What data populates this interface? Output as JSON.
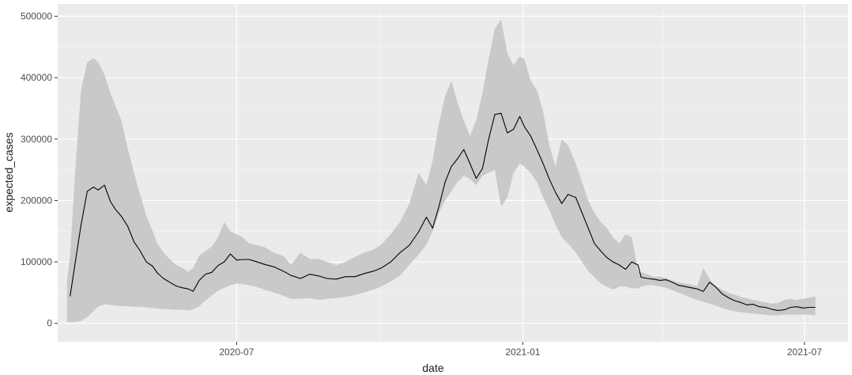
{
  "chart_data": {
    "type": "line",
    "title": "",
    "xlabel": "date",
    "ylabel": "expected_cases",
    "x_range": [
      "2020-03-08",
      "2021-07-29"
    ],
    "ylim": [
      -30000,
      520000
    ],
    "x_ticks": [
      {
        "date": "2020-07-01",
        "label": "2020-07"
      },
      {
        "date": "2021-01-01",
        "label": "2021-01"
      },
      {
        "date": "2021-07-01",
        "label": "2021-07"
      }
    ],
    "y_ticks": [
      {
        "value": 0,
        "label": "0"
      },
      {
        "value": 100000,
        "label": "100000"
      },
      {
        "value": 200000,
        "label": "200000"
      },
      {
        "value": 300000,
        "label": "300000"
      },
      {
        "value": 400000,
        "label": "400000"
      },
      {
        "value": 500000,
        "label": "500000"
      }
    ],
    "grid": true,
    "legend": "none",
    "colors": {
      "panel": "#ebebeb",
      "grid_major": "#ffffff",
      "ribbon": "#c9c9c9",
      "line": "#000000"
    },
    "series": [
      {
        "type": "line",
        "x": [
          "2020-03-16",
          "2020-03-19",
          "2020-03-23",
          "2020-03-27",
          "2020-03-31",
          "2020-04-03",
          "2020-04-07",
          "2020-04-11",
          "2020-04-14",
          "2020-04-18",
          "2020-04-22",
          "2020-04-26",
          "2020-04-30",
          "2020-05-04",
          "2020-05-08",
          "2020-05-11",
          "2020-05-15",
          "2020-05-19",
          "2020-05-23",
          "2020-05-27",
          "2020-05-31",
          "2020-06-03",
          "2020-06-07",
          "2020-06-11",
          "2020-06-15",
          "2020-06-19",
          "2020-06-23",
          "2020-06-27",
          "2020-07-01",
          "2020-07-05",
          "2020-07-09",
          "2020-07-13",
          "2020-07-19",
          "2020-07-25",
          "2020-07-31",
          "2020-08-05",
          "2020-08-11",
          "2020-08-17",
          "2020-08-23",
          "2020-08-28",
          "2020-09-03",
          "2020-09-09",
          "2020-09-15",
          "2020-09-21",
          "2020-09-27",
          "2020-10-02",
          "2020-10-08",
          "2020-10-14",
          "2020-10-20",
          "2020-10-26",
          "2020-10-31",
          "2020-11-04",
          "2020-11-08",
          "2020-11-12",
          "2020-11-16",
          "2020-11-20",
          "2020-11-24",
          "2020-11-28",
          "2020-12-02",
          "2020-12-06",
          "2020-12-10",
          "2020-12-14",
          "2020-12-18",
          "2020-12-22",
          "2020-12-26",
          "2020-12-30",
          "2021-01-02",
          "2021-01-06",
          "2021-01-10",
          "2021-01-14",
          "2021-01-18",
          "2021-01-22",
          "2021-01-26",
          "2021-01-30",
          "2021-02-04",
          "2021-02-08",
          "2021-02-12",
          "2021-02-16",
          "2021-02-20",
          "2021-02-24",
          "2021-02-28",
          "2021-03-04",
          "2021-03-08",
          "2021-03-12",
          "2021-03-16",
          "2021-03-18",
          "2021-03-22",
          "2021-03-26",
          "2021-03-30",
          "2021-04-03",
          "2021-04-07",
          "2021-04-11",
          "2021-04-15",
          "2021-04-19",
          "2021-04-23",
          "2021-04-27",
          "2021-05-01",
          "2021-05-05",
          "2021-05-09",
          "2021-05-13",
          "2021-05-17",
          "2021-05-21",
          "2021-05-25",
          "2021-05-29",
          "2021-06-02",
          "2021-06-06",
          "2021-06-10",
          "2021-06-14",
          "2021-06-18",
          "2021-06-22",
          "2021-06-26",
          "2021-06-30",
          "2021-07-04",
          "2021-07-08"
        ],
        "values": [
          44000,
          95000,
          160000,
          215000,
          222000,
          217000,
          225000,
          198000,
          186000,
          174000,
          158000,
          133000,
          118000,
          100000,
          93000,
          82000,
          73000,
          67000,
          61000,
          58000,
          56000,
          52000,
          70000,
          80000,
          83000,
          94000,
          100000,
          113000,
          103000,
          104000,
          104000,
          101000,
          96000,
          92000,
          85000,
          78000,
          73000,
          80000,
          77000,
          73000,
          72000,
          76000,
          76000,
          81000,
          85000,
          90000,
          100000,
          115000,
          127000,
          149000,
          173000,
          155000,
          190000,
          230000,
          255000,
          268000,
          283000,
          260000,
          236000,
          252000,
          300000,
          340000,
          342000,
          310000,
          316000,
          337000,
          320000,
          305000,
          283000,
          260000,
          235000,
          213000,
          195000,
          210000,
          205000,
          180000,
          155000,
          130000,
          118000,
          107000,
          100000,
          95000,
          88000,
          100000,
          95000,
          75000,
          73000,
          72000,
          70000,
          71000,
          67000,
          62000,
          60000,
          58000,
          56000,
          52000,
          67000,
          59000,
          48000,
          42000,
          37000,
          34000,
          30000,
          31000,
          27000,
          26000,
          23000,
          21000,
          22000,
          26000,
          27000,
          25000,
          26000,
          26000
        ]
      },
      {
        "type": "ribbon",
        "x": [
          "2020-03-14",
          "2020-03-16",
          "2020-03-19",
          "2020-03-23",
          "2020-03-27",
          "2020-03-31",
          "2020-04-03",
          "2020-04-07",
          "2020-04-11",
          "2020-04-14",
          "2020-04-18",
          "2020-04-22",
          "2020-04-26",
          "2020-04-30",
          "2020-05-04",
          "2020-05-08",
          "2020-05-11",
          "2020-05-15",
          "2020-05-19",
          "2020-05-23",
          "2020-05-27",
          "2020-05-31",
          "2020-06-03",
          "2020-06-07",
          "2020-06-11",
          "2020-06-15",
          "2020-06-19",
          "2020-06-23",
          "2020-06-27",
          "2020-07-01",
          "2020-07-05",
          "2020-07-09",
          "2020-07-13",
          "2020-07-19",
          "2020-07-25",
          "2020-07-31",
          "2020-08-05",
          "2020-08-11",
          "2020-08-17",
          "2020-08-23",
          "2020-08-28",
          "2020-09-03",
          "2020-09-09",
          "2020-09-15",
          "2020-09-21",
          "2020-09-27",
          "2020-10-02",
          "2020-10-08",
          "2020-10-14",
          "2020-10-20",
          "2020-10-26",
          "2020-10-31",
          "2020-11-04",
          "2020-11-08",
          "2020-11-12",
          "2020-11-16",
          "2020-11-20",
          "2020-11-24",
          "2020-11-28",
          "2020-12-02",
          "2020-12-06",
          "2020-12-10",
          "2020-12-14",
          "2020-12-18",
          "2020-12-22",
          "2020-12-26",
          "2020-12-30",
          "2021-01-02",
          "2021-01-06",
          "2021-01-10",
          "2021-01-14",
          "2021-01-18",
          "2021-01-22",
          "2021-01-26",
          "2021-01-30",
          "2021-02-04",
          "2021-02-08",
          "2021-02-12",
          "2021-02-16",
          "2021-02-20",
          "2021-02-24",
          "2021-02-28",
          "2021-03-04",
          "2021-03-08",
          "2021-03-12",
          "2021-03-16",
          "2021-03-18",
          "2021-03-22",
          "2021-03-26",
          "2021-03-30",
          "2021-04-03",
          "2021-04-07",
          "2021-04-11",
          "2021-04-15",
          "2021-04-19",
          "2021-04-23",
          "2021-04-27",
          "2021-05-01",
          "2021-05-05",
          "2021-05-09",
          "2021-05-13",
          "2021-05-17",
          "2021-05-21",
          "2021-05-25",
          "2021-05-29",
          "2021-06-02",
          "2021-06-06",
          "2021-06-10",
          "2021-06-14",
          "2021-06-18",
          "2021-06-22",
          "2021-06-26",
          "2021-06-30",
          "2021-07-04",
          "2021-07-08"
        ],
        "low": [
          2000,
          2000,
          2000,
          4000,
          10000,
          20000,
          27000,
          31000,
          30000,
          29000,
          28000,
          28000,
          27000,
          27000,
          26000,
          25000,
          24000,
          23000,
          23000,
          22000,
          22000,
          21000,
          23000,
          28000,
          37000,
          45000,
          53000,
          58000,
          62000,
          65000,
          64000,
          62000,
          60000,
          55000,
          50000,
          45000,
          40000,
          40000,
          41000,
          38000,
          40000,
          41000,
          43000,
          46000,
          50000,
          55000,
          60000,
          68000,
          78000,
          95000,
          112000,
          128000,
          150000,
          180000,
          200000,
          215000,
          230000,
          240000,
          235000,
          225000,
          240000,
          245000,
          250000,
          190000,
          205000,
          245000,
          260000,
          255000,
          245000,
          230000,
          205000,
          185000,
          160000,
          140000,
          130000,
          115000,
          100000,
          85000,
          75000,
          65000,
          60000,
          55000,
          60000,
          60000,
          57000,
          57000,
          60000,
          62000,
          62000,
          60000,
          58000,
          54000,
          50000,
          46000,
          42000,
          38000,
          35000,
          32000,
          29000,
          25000,
          22000,
          20000,
          18000,
          17000,
          16000,
          15000,
          14000,
          13000,
          13000,
          14000,
          14000,
          14000,
          14000,
          14000,
          13000
        ],
        "high": [
          70000,
          110000,
          240000,
          380000,
          425000,
          432000,
          425000,
          405000,
          375000,
          355000,
          330000,
          285000,
          245000,
          210000,
          175000,
          150000,
          130000,
          115000,
          105000,
          95000,
          90000,
          84000,
          90000,
          110000,
          118000,
          125000,
          140000,
          165000,
          150000,
          145000,
          140000,
          130000,
          128000,
          124000,
          115000,
          110000,
          95000,
          115000,
          105000,
          105000,
          100000,
          95000,
          100000,
          108000,
          115000,
          120000,
          128000,
          145000,
          165000,
          195000,
          245000,
          225000,
          265000,
          325000,
          370000,
          395000,
          360000,
          330000,
          305000,
          330000,
          375000,
          430000,
          480000,
          495000,
          440000,
          420000,
          435000,
          430000,
          395000,
          380000,
          345000,
          290000,
          255000,
          300000,
          290000,
          260000,
          230000,
          200000,
          180000,
          165000,
          155000,
          140000,
          130000,
          145000,
          140000,
          85000,
          83000,
          80000,
          76000,
          76000,
          74000,
          70000,
          67000,
          65000,
          63000,
          60000,
          90000,
          72000,
          61000,
          55000,
          50000,
          47000,
          43000,
          41000,
          38000,
          36000,
          34000,
          32000,
          33000,
          38000,
          40000,
          38000,
          40000,
          42000,
          44000
        ]
      }
    ]
  }
}
